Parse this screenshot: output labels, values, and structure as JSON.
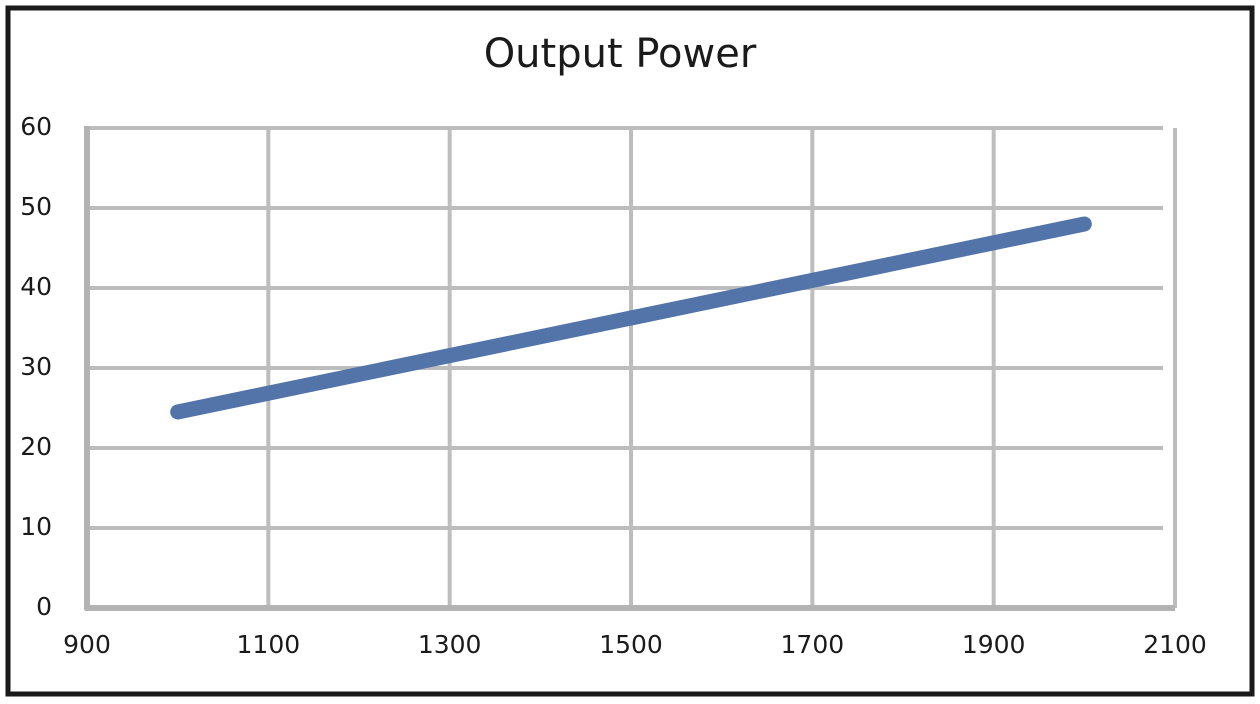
{
  "chart_data": {
    "type": "line",
    "title": "Output Power",
    "x": [
      1000,
      2000
    ],
    "series": [
      {
        "name": "Output Power",
        "color": "#5374a8",
        "values": [
          24.5,
          48
        ]
      }
    ],
    "xlim": [
      900,
      2100
    ],
    "xticks": [
      900,
      1100,
      1300,
      1500,
      1700,
      1900,
      2100
    ],
    "ylim": [
      0,
      60
    ],
    "yticks": [
      0,
      10,
      20,
      30,
      40,
      50,
      60
    ],
    "grid": true
  }
}
